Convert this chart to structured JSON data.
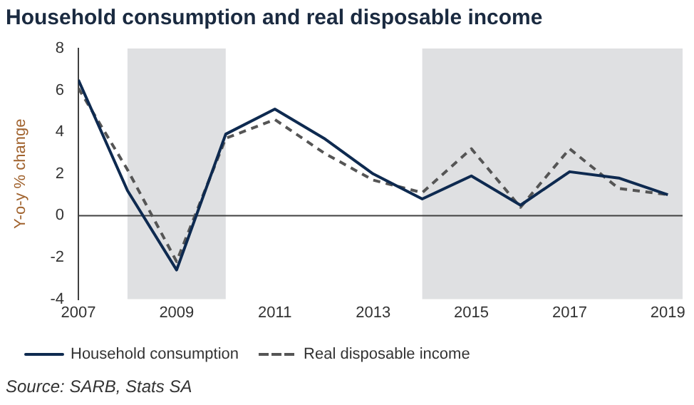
{
  "chart_data": {
    "type": "line",
    "title": "Household consumption and real disposable income",
    "ylabel": "Y-o-y % change",
    "x": [
      2007,
      2008,
      2009,
      2010,
      2011,
      2012,
      2013,
      2014,
      2015,
      2016,
      2017,
      2018,
      2019
    ],
    "series": [
      {
        "name": "Household consumption",
        "color": "#0e2a50",
        "line_style": "solid",
        "values": [
          6.5,
          1.2,
          -2.6,
          3.9,
          5.1,
          3.7,
          2.0,
          0.8,
          1.9,
          0.5,
          2.1,
          1.8,
          1.0
        ]
      },
      {
        "name": "Real disposable income",
        "color": "#555555",
        "line_style": "dashed",
        "values": [
          6.1,
          2.2,
          -2.2,
          3.7,
          4.6,
          3.0,
          1.7,
          1.1,
          3.2,
          0.4,
          3.2,
          1.3,
          1.0
        ]
      }
    ],
    "xlim": [
      2007,
      2019.3
    ],
    "xticks": [
      2007,
      2009,
      2011,
      2013,
      2015,
      2017,
      2019
    ],
    "ylim": [
      -4,
      8
    ],
    "yticks": [
      -4,
      -2,
      0,
      2,
      4,
      6,
      8
    ],
    "bands": [
      {
        "axis": "x",
        "from": 2008,
        "to": 2010,
        "color": "#dfe0e2"
      },
      {
        "axis": "x",
        "from": 2014,
        "to": 2019.3,
        "color": "#dfe0e2"
      }
    ],
    "ref_lines": [
      {
        "axis": "y",
        "value": 0,
        "color": "#404040"
      }
    ],
    "grid": false,
    "legend": "bottom",
    "marker": "none",
    "annotations": [
      "Source: SARB, Stats SA"
    ]
  }
}
